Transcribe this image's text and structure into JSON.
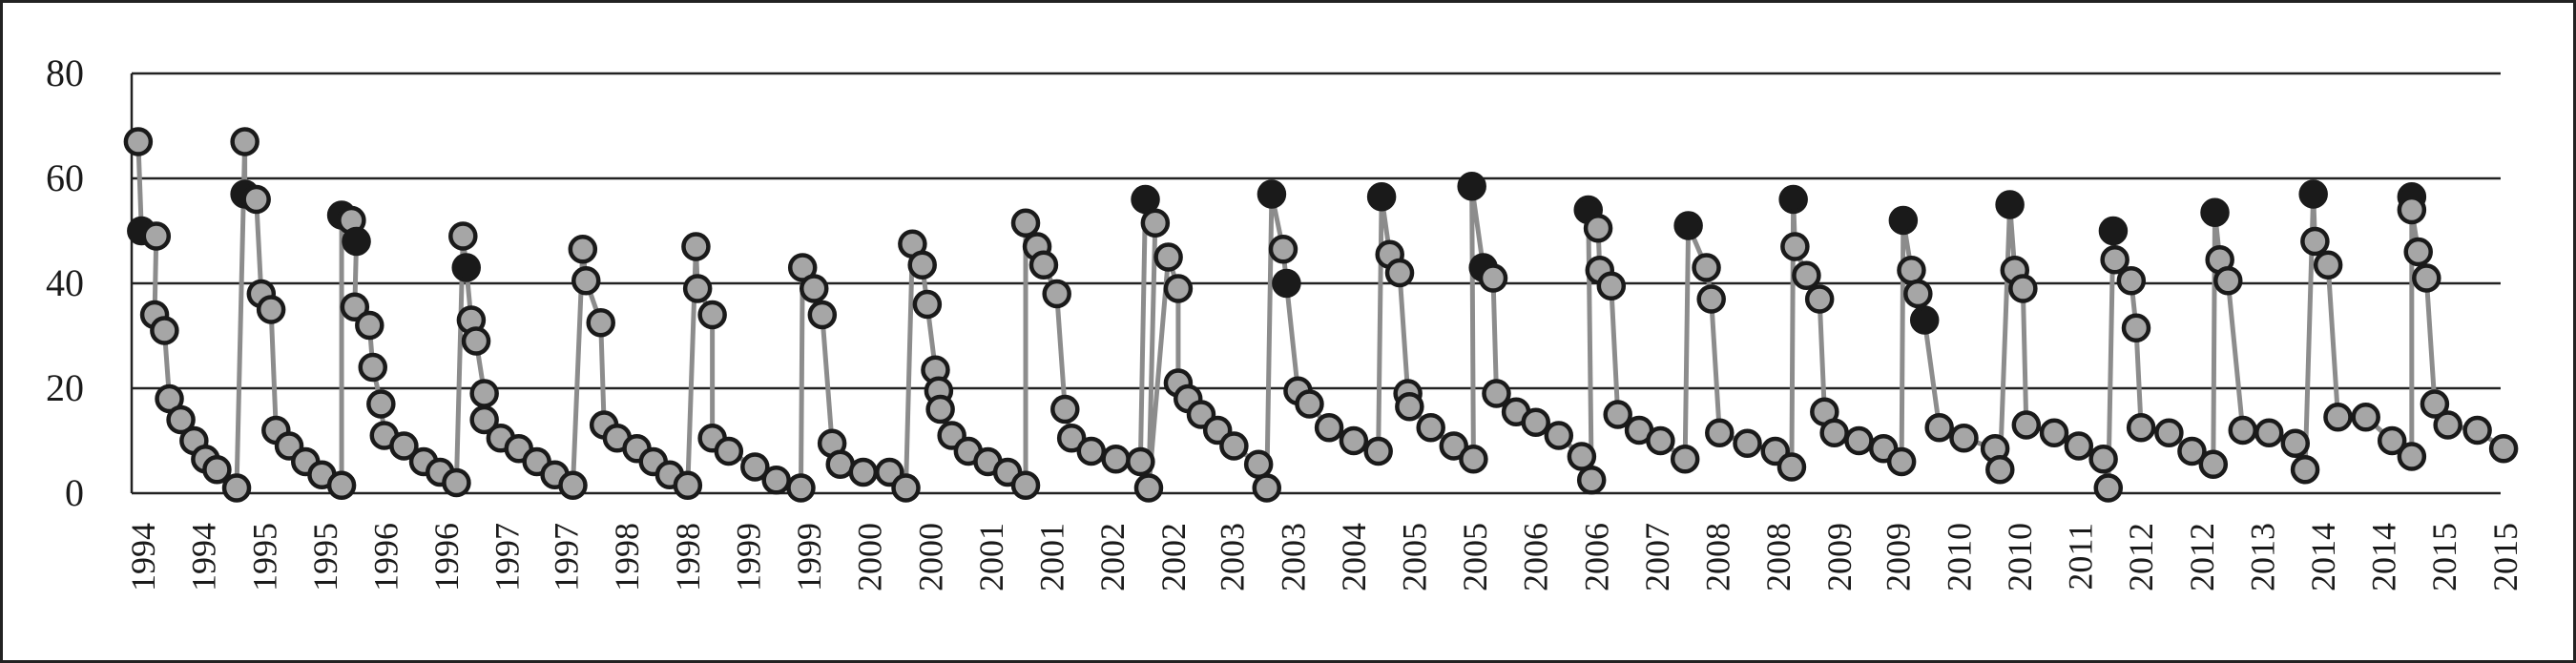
{
  "chart_data": {
    "type": "line",
    "x": [
      82,
      84,
      93,
      92,
      98,
      101,
      108,
      116,
      123,
      130,
      142,
      147,
      147,
      154,
      157,
      163,
      166,
      174,
      184,
      194,
      206,
      206,
      212,
      215,
      214,
      223,
      225,
      230,
      232,
      244,
      256,
      266,
      276,
      280,
      282,
      285,
      288,
      293,
      293,
      303,
      314,
      325,
      336,
      347,
      353,
      355,
      364,
      366,
      374,
      386,
      396,
      406,
      417,
      422,
      423,
      432,
      432,
      442,
      458,
      471,
      486,
      487,
      494,
      499,
      505,
      510,
      524,
      540,
      550,
      554,
      560,
      563,
      568,
      570,
      571,
      578,
      588,
      600,
      612,
      623,
      623,
      630,
      634,
      642,
      647,
      651,
      663,
      678,
      693,
      696,
      702,
      698,
      710,
      716,
      716,
      722,
      730,
      740,
      750,
      765,
      770,
      773,
      780,
      782,
      789,
      796,
      808,
      823,
      838,
      840,
      845,
      851,
      856,
      857,
      870,
      884,
      896,
      895,
      902,
      908,
      910,
      922,
      934,
      948,
      962,
      968,
      966,
      972,
      973,
      980,
      984,
      997,
      1010,
      1025,
      1027,
      1038,
      1041,
      1046,
      1063,
      1080,
      1090,
      1091,
      1092,
      1099,
      1107,
      1110,
      1116,
      1131,
      1146,
      1157,
      1158,
      1163,
      1167,
      1171,
      1180,
      1195,
      1214,
      1217,
      1223,
      1226,
      1231,
      1233,
      1250,
      1265,
      1280,
      1283,
      1286,
      1287,
      1297,
      1300,
      1303,
      1320,
      1334,
      1347,
      1348,
      1351,
      1356,
      1365,
      1381,
      1397,
      1403,
      1408,
      1409,
      1417,
      1423,
      1440,
      1456,
      1468,
      1468,
      1468,
      1472,
      1477,
      1482,
      1490,
      1508,
      1524
    ],
    "series": [
      {
        "color": "#8c8c8c",
        "values": [
          67,
          50,
          49,
          34,
          31,
          18,
          14,
          10,
          6.5,
          4.5,
          1,
          67,
          57,
          56,
          38,
          35,
          12,
          9,
          6,
          3.5,
          1.5,
          53,
          52,
          48,
          35.5,
          32,
          24,
          17,
          11,
          9,
          6,
          4,
          2,
          49,
          43,
          33,
          29,
          19,
          14,
          10.5,
          8.5,
          6,
          3.5,
          1.5,
          46.5,
          40.5,
          32.5,
          13,
          10.5,
          8.5,
          6,
          3.5,
          1.5,
          47,
          39,
          34,
          10.5,
          8,
          5,
          2.5,
          1,
          43,
          39,
          34,
          9.5,
          5.5,
          4,
          4,
          1,
          47.5,
          43.5,
          36,
          23.5,
          19.5,
          16,
          11,
          8,
          6,
          4,
          1.5,
          51.5,
          47,
          43.5,
          38,
          16,
          10.5,
          8,
          6.5,
          6,
          56,
          51.5,
          1,
          45,
          39,
          21,
          18,
          15,
          12,
          9,
          5.5,
          1,
          57,
          46.5,
          40,
          19.5,
          17,
          12.5,
          10,
          8,
          56.5,
          45.5,
          42,
          19,
          16.5,
          12.5,
          9,
          6.5,
          58.5,
          43,
          41,
          19,
          15.5,
          13.5,
          11,
          7,
          2.5,
          54,
          50.5,
          42.5,
          39.5,
          15,
          12,
          10,
          6.5,
          51,
          43,
          37,
          11.5,
          9.5,
          8,
          5,
          56,
          47,
          41.5,
          37,
          15.5,
          11.5,
          10,
          8.5,
          6,
          52,
          42.5,
          38,
          33,
          12.5,
          10.5,
          8.5,
          4.5,
          55,
          42.5,
          39,
          13,
          11.5,
          9,
          6.5,
          1,
          50,
          44.5,
          40.5,
          31.5,
          12.5,
          11.5,
          8,
          5.5,
          53.5,
          44.5,
          40.5,
          12,
          11.5,
          9.5,
          4.5,
          57,
          48,
          43.5,
          14.5,
          14.5,
          10,
          7,
          56.5,
          54,
          46,
          41,
          17,
          13,
          12,
          8.5
        ],
        "marker_colors": [
          "#a6a6a6",
          "#1a1a1a",
          "#a6a6a6",
          "#a6a6a6",
          "#a6a6a6",
          "#a6a6a6",
          "#a6a6a6",
          "#a6a6a6",
          "#a6a6a6",
          "#a6a6a6",
          "#a6a6a6",
          "#a6a6a6",
          "#1a1a1a",
          "#a6a6a6",
          "#a6a6a6",
          "#a6a6a6",
          "#a6a6a6",
          "#a6a6a6",
          "#a6a6a6",
          "#a6a6a6",
          "#a6a6a6",
          "#1a1a1a",
          "#a6a6a6",
          "#1a1a1a",
          "#a6a6a6",
          "#a6a6a6",
          "#a6a6a6",
          "#a6a6a6",
          "#a6a6a6",
          "#a6a6a6",
          "#a6a6a6",
          "#a6a6a6",
          "#a6a6a6",
          "#a6a6a6",
          "#1a1a1a",
          "#a6a6a6",
          "#a6a6a6",
          "#a6a6a6",
          "#a6a6a6",
          "#a6a6a6",
          "#a6a6a6",
          "#a6a6a6",
          "#a6a6a6",
          "#a6a6a6",
          "#a6a6a6",
          "#a6a6a6",
          "#a6a6a6",
          "#a6a6a6",
          "#a6a6a6",
          "#a6a6a6",
          "#a6a6a6",
          "#a6a6a6",
          "#a6a6a6",
          "#a6a6a6",
          "#a6a6a6",
          "#a6a6a6",
          "#a6a6a6",
          "#a6a6a6",
          "#a6a6a6",
          "#a6a6a6",
          "#a6a6a6",
          "#a6a6a6",
          "#a6a6a6",
          "#a6a6a6",
          "#a6a6a6",
          "#a6a6a6",
          "#a6a6a6",
          "#a6a6a6",
          "#a6a6a6",
          "#a6a6a6",
          "#a6a6a6",
          "#a6a6a6",
          "#a6a6a6",
          "#a6a6a6",
          "#a6a6a6",
          "#a6a6a6",
          "#a6a6a6",
          "#a6a6a6",
          "#a6a6a6",
          "#a6a6a6",
          "#a6a6a6",
          "#a6a6a6",
          "#a6a6a6",
          "#a6a6a6",
          "#a6a6a6",
          "#a6a6a6",
          "#a6a6a6",
          "#a6a6a6",
          "#a6a6a6",
          "#1a1a1a",
          "#a6a6a6",
          "#a6a6a6",
          "#a6a6a6",
          "#a6a6a6",
          "#a6a6a6",
          "#a6a6a6",
          "#a6a6a6",
          "#a6a6a6",
          "#a6a6a6",
          "#a6a6a6",
          "#a6a6a6",
          "#1a1a1a",
          "#a6a6a6",
          "#1a1a1a",
          "#a6a6a6",
          "#a6a6a6",
          "#a6a6a6",
          "#a6a6a6",
          "#a6a6a6",
          "#1a1a1a",
          "#a6a6a6",
          "#a6a6a6",
          "#a6a6a6",
          "#a6a6a6",
          "#a6a6a6",
          "#a6a6a6",
          "#a6a6a6",
          "#1a1a1a",
          "#1a1a1a",
          "#a6a6a6",
          "#a6a6a6",
          "#a6a6a6",
          "#a6a6a6",
          "#a6a6a6",
          "#a6a6a6",
          "#a6a6a6",
          "#1a1a1a",
          "#a6a6a6",
          "#a6a6a6",
          "#a6a6a6",
          "#a6a6a6",
          "#a6a6a6",
          "#a6a6a6",
          "#a6a6a6",
          "#1a1a1a",
          "#a6a6a6",
          "#a6a6a6",
          "#a6a6a6",
          "#a6a6a6",
          "#a6a6a6",
          "#a6a6a6",
          "#1a1a1a",
          "#a6a6a6",
          "#a6a6a6",
          "#a6a6a6",
          "#a6a6a6",
          "#a6a6a6",
          "#a6a6a6",
          "#a6a6a6",
          "#a6a6a6",
          "#1a1a1a",
          "#a6a6a6",
          "#a6a6a6",
          "#1a1a1a",
          "#a6a6a6",
          "#a6a6a6",
          "#a6a6a6",
          "#a6a6a6",
          "#1a1a1a",
          "#a6a6a6",
          "#a6a6a6",
          "#a6a6a6",
          "#a6a6a6",
          "#a6a6a6",
          "#a6a6a6",
          "#a6a6a6",
          "#1a1a1a",
          "#a6a6a6",
          "#a6a6a6",
          "#a6a6a6",
          "#a6a6a6",
          "#a6a6a6",
          "#a6a6a6",
          "#a6a6a6",
          "#1a1a1a",
          "#a6a6a6",
          "#a6a6a6",
          "#a6a6a6",
          "#a6a6a6",
          "#a6a6a6",
          "#a6a6a6",
          "#1a1a1a",
          "#a6a6a6",
          "#a6a6a6",
          "#a6a6a6",
          "#a6a6a6",
          "#a6a6a6",
          "#a6a6a6",
          "#1a1a1a",
          "#a6a6a6",
          "#a6a6a6",
          "#a6a6a6",
          "#a6a6a6",
          "#a6a6a6",
          "#a6a6a6",
          "#a6a6a6"
        ]
      }
    ],
    "xlim": [
      78,
      1528
    ],
    "xticks": [
      {
        "value": 85,
        "label": "1994"
      },
      {
        "value": 122,
        "label": "1994"
      },
      {
        "value": 159,
        "label": "1995"
      },
      {
        "value": 196,
        "label": "1995"
      },
      {
        "value": 233,
        "label": "1996"
      },
      {
        "value": 270,
        "label": "1996"
      },
      {
        "value": 307,
        "label": "1997"
      },
      {
        "value": 343,
        "label": "1997"
      },
      {
        "value": 380,
        "label": "1998"
      },
      {
        "value": 417,
        "label": "1998"
      },
      {
        "value": 454,
        "label": "1999"
      },
      {
        "value": 491,
        "label": "1999"
      },
      {
        "value": 528,
        "label": "2000"
      },
      {
        "value": 565,
        "label": "2000"
      },
      {
        "value": 602,
        "label": "2001"
      },
      {
        "value": 639,
        "label": "2001"
      },
      {
        "value": 676,
        "label": "2002"
      },
      {
        "value": 713,
        "label": "2002"
      },
      {
        "value": 749,
        "label": "2003"
      },
      {
        "value": 786,
        "label": "2003"
      },
      {
        "value": 823,
        "label": "2004"
      },
      {
        "value": 860,
        "label": "2005"
      },
      {
        "value": 897,
        "label": "2005"
      },
      {
        "value": 934,
        "label": "2006"
      },
      {
        "value": 971,
        "label": "2006"
      },
      {
        "value": 1008,
        "label": "2007"
      },
      {
        "value": 1045,
        "label": "2008"
      },
      {
        "value": 1082,
        "label": "2008"
      },
      {
        "value": 1119,
        "label": "2009"
      },
      {
        "value": 1155,
        "label": "2009"
      },
      {
        "value": 1192,
        "label": "2010"
      },
      {
        "value": 1229,
        "label": "2010"
      },
      {
        "value": 1266,
        "label": "2011"
      },
      {
        "value": 1303,
        "label": "2012"
      },
      {
        "value": 1340,
        "label": "2012"
      },
      {
        "value": 1377,
        "label": "2013"
      },
      {
        "value": 1414,
        "label": "2014"
      },
      {
        "value": 1451,
        "label": "2014"
      },
      {
        "value": 1488,
        "label": "2015"
      },
      {
        "value": 1525,
        "label": "2015"
      }
    ],
    "ylim": [
      0,
      80
    ],
    "yticks": [
      0,
      20,
      40,
      60,
      80
    ],
    "grid": true
  }
}
